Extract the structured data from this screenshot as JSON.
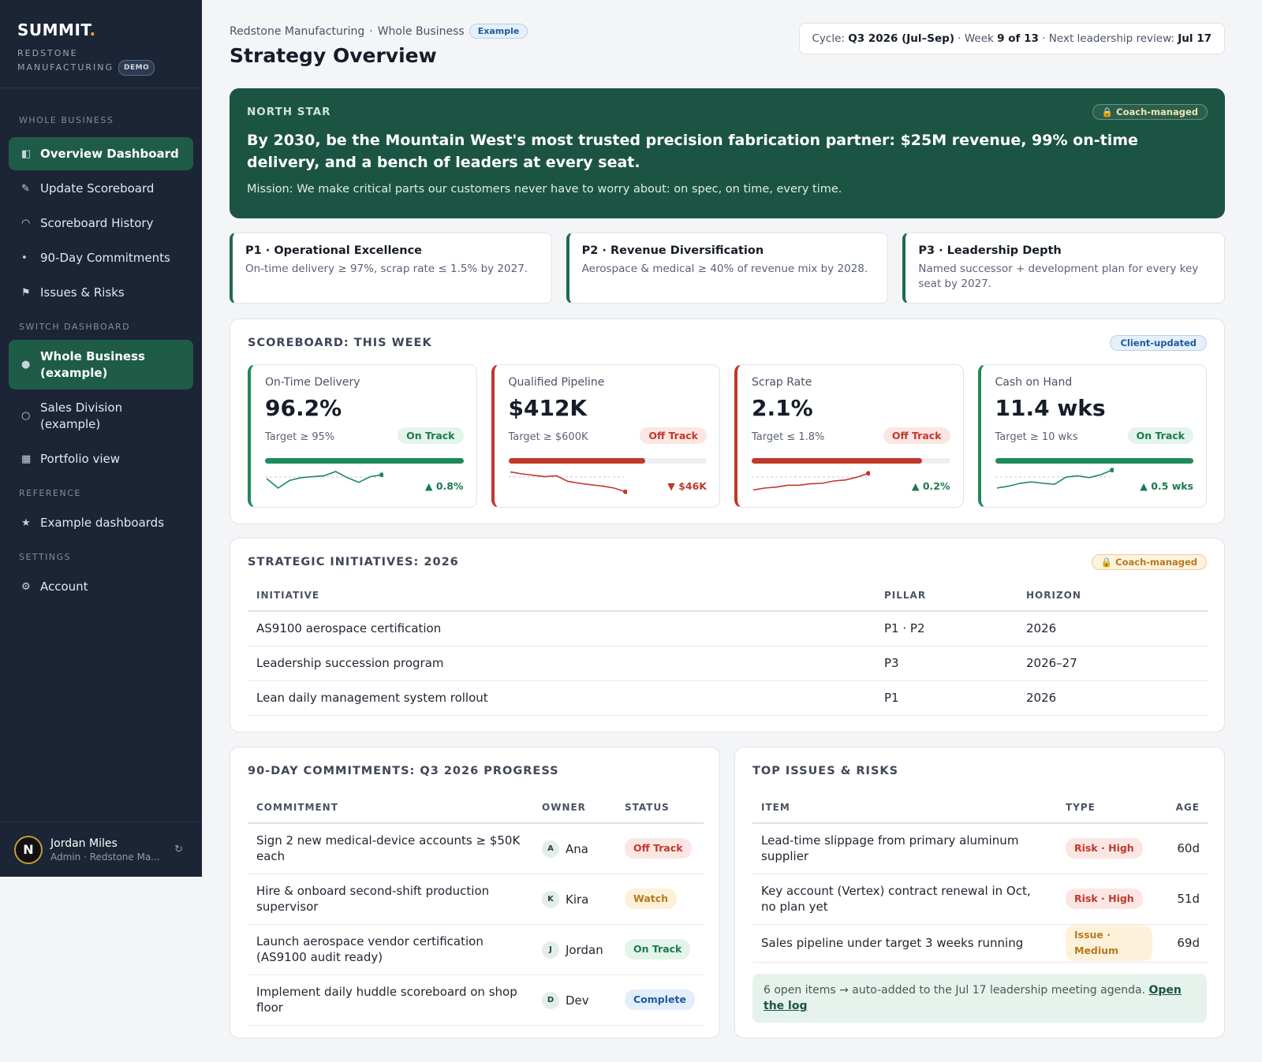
{
  "sidebar": {
    "brand": "SUMMIT",
    "brand_dot": ".",
    "company_line1": "REDSTONE",
    "company_line2": "MANUFACTURING",
    "demo_badge": "DEMO",
    "section_whole": "WHOLE BUSINESS",
    "nav_overview": "Overview Dashboard",
    "nav_update": "Update Scoreboard",
    "nav_history": "Scoreboard History",
    "nav_commitments": "90-Day Commitments",
    "nav_issues": "Issues & Risks",
    "section_switch": "SWITCH DASHBOARD",
    "switch_whole_line1": "Whole Business",
    "switch_whole_line2": "(example)",
    "switch_sales_line1": "Sales Division",
    "switch_sales_line2": "(example)",
    "nav_portfolio": "Portfolio view",
    "section_reference": "REFERENCE",
    "nav_examples": "Example dashboards",
    "section_settings": "SETTINGS",
    "nav_account": "Account",
    "user": {
      "initial": "N",
      "name": "Jordan Miles",
      "role": "Admin · Redstone Ma..."
    }
  },
  "header": {
    "breadcrumb_company": "Redstone Manufacturing",
    "breadcrumb_sep": "·",
    "breadcrumb_scope": "Whole Business",
    "example_badge": "Example",
    "title": "Strategy Overview",
    "cycle_label": "Cycle:",
    "cycle_value": "Q3 2026 (Jul–Sep)",
    "week_label": "· Week",
    "week_value": "9 of 13",
    "review_label": "· Next leadership review:",
    "review_value": "Jul 17"
  },
  "north_star": {
    "label": "NORTH STAR",
    "badge": "🔒 Coach-managed",
    "vision": "By 2030, be the Mountain West's most trusted precision fabrication partner: $25M revenue, 99% on-time delivery, and a bench of leaders at every seat.",
    "mission": "Mission: We make critical parts our customers never have to worry about: on spec, on time, every time."
  },
  "pillars": [
    {
      "title": "P1 · Operational Excellence",
      "desc": "On-time delivery ≥ 97%, scrap rate ≤ 1.5% by 2027."
    },
    {
      "title": "P2 · Revenue Diversification",
      "desc": "Aerospace & medical ≥ 40% of revenue mix by 2028."
    },
    {
      "title": "P3 · Leadership Depth",
      "desc": "Named successor + development plan for every key seat by 2027."
    }
  ],
  "scoreboard": {
    "title": "SCOREBOARD: THIS WEEK",
    "badge": "Client-updated",
    "kpis": [
      {
        "name": "On-Time Delivery",
        "value": "96.2%",
        "target": "Target ≥ 95%",
        "status": "On Track",
        "progress": 1.0,
        "delta": "▲ 0.8%",
        "color": "#1f8a5a",
        "spark": [
          3,
          1,
          2.6,
          3.2,
          3.4,
          3.6,
          4.5,
          3.2,
          2.2,
          3.4,
          3.8
        ]
      },
      {
        "name": "Qualified Pipeline",
        "value": "$412K",
        "target": "Target ≥ $600K",
        "status": "Off Track",
        "progress": 0.69,
        "delta": "▼ $46K",
        "color": "#c0392b",
        "spark": [
          4.4,
          4.0,
          3.7,
          3.4,
          3.6,
          2.4,
          2.0,
          1.7,
          1.4,
          1.0,
          0.2
        ]
      },
      {
        "name": "Scrap Rate",
        "value": "2.1%",
        "target": "Target ≤ 1.8%",
        "status": "Off Track",
        "progress": 0.86,
        "delta": "▲ 0.2%",
        "color": "#c0392b",
        "spark": [
          0.6,
          1.0,
          1.2,
          1.6,
          1.6,
          1.9,
          2.0,
          2.5,
          2.7,
          3.3,
          4.1
        ]
      },
      {
        "name": "Cash on Hand",
        "value": "11.4 wks",
        "target": "Target ≥ 10 wks",
        "status": "On Track",
        "progress": 1.0,
        "delta": "▲ 0.5 wks",
        "color": "#1f8a5a",
        "spark": [
          1.0,
          1.4,
          2.0,
          2.3,
          2.0,
          1.8,
          3.3,
          3.6,
          3.2,
          3.8,
          4.8
        ]
      }
    ]
  },
  "initiatives": {
    "title": "STRATEGIC INITIATIVES: 2026",
    "badge": "🔒 Coach-managed",
    "headers": {
      "initiative": "INITIATIVE",
      "pillar": "PILLAR",
      "horizon": "HORIZON"
    },
    "rows": [
      {
        "initiative": "AS9100 aerospace certification",
        "pillar": "P1 · P2",
        "horizon": "2026"
      },
      {
        "initiative": "Leadership succession program",
        "pillar": "P3",
        "horizon": "2026–27"
      },
      {
        "initiative": "Lean daily management system rollout",
        "pillar": "P1",
        "horizon": "2026"
      }
    ]
  },
  "commitments": {
    "title": "90-DAY COMMITMENTS: Q3 2026 PROGRESS",
    "headers": {
      "commitment": "COMMITMENT",
      "owner": "OWNER",
      "status": "STATUS"
    },
    "rows": [
      {
        "commitment": "Sign 2 new medical-device accounts ≥ $50K each",
        "initial": "A",
        "owner": "Ana",
        "status": "Off Track"
      },
      {
        "commitment": "Hire & onboard second-shift production supervisor",
        "initial": "K",
        "owner": "Kira",
        "status": "Watch"
      },
      {
        "commitment": "Launch aerospace vendor certification (AS9100 audit ready)",
        "initial": "J",
        "owner": "Jordan",
        "status": "On Track"
      },
      {
        "commitment": "Implement daily huddle scoreboard on shop floor",
        "initial": "D",
        "owner": "Dev",
        "status": "Complete"
      }
    ]
  },
  "issues": {
    "title": "TOP ISSUES & RISKS",
    "headers": {
      "item": "ITEM",
      "type": "TYPE",
      "age": "AGE"
    },
    "rows": [
      {
        "item": "Lead-time slippage from primary aluminum supplier",
        "type": "Risk · High",
        "age": "60d"
      },
      {
        "item": "Key account (Vertex) contract renewal in Oct, no plan yet",
        "type": "Risk · High",
        "age": "51d"
      },
      {
        "item": "Sales pipeline under target 3 weeks running",
        "type": "Issue · Medium",
        "age": "69d"
      }
    ],
    "log_text": "6 open items → auto-added to the Jul 17 leadership meeting agenda.",
    "log_link": "Open the log"
  }
}
